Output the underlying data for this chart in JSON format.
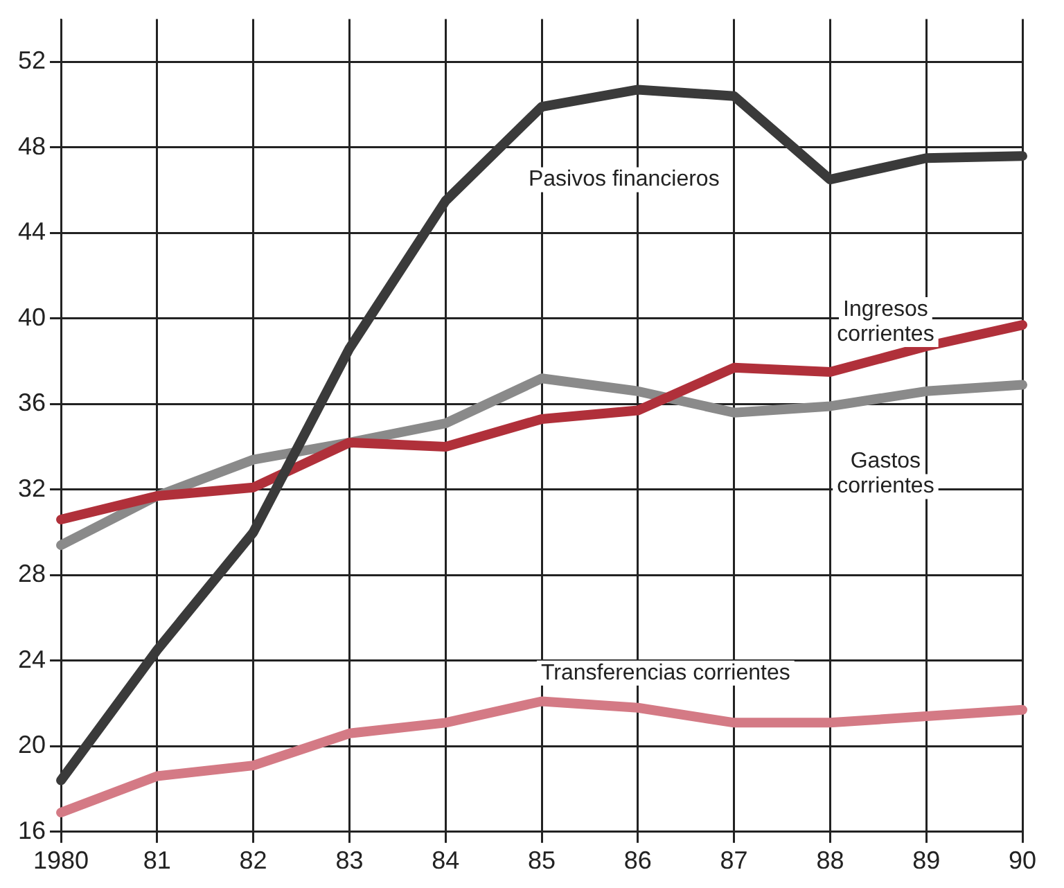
{
  "chart_data": {
    "type": "line",
    "categories": [
      "1980",
      "81",
      "82",
      "83",
      "84",
      "85",
      "86",
      "87",
      "88",
      "89",
      "90"
    ],
    "series": [
      {
        "name": "Pasivos financieros",
        "color": "#3a3a3a",
        "values": [
          18.4,
          24.5,
          30.0,
          38.6,
          45.5,
          49.9,
          50.7,
          50.4,
          46.5,
          47.5,
          47.6
        ]
      },
      {
        "name": "Ingresos corrientes",
        "color": "#b0303a",
        "values": [
          30.6,
          31.7,
          32.1,
          34.2,
          34.0,
          35.3,
          35.7,
          37.7,
          37.5,
          38.7,
          39.7
        ]
      },
      {
        "name": "Gastos corrientes",
        "color": "#8a8a8a",
        "values": [
          29.4,
          31.7,
          33.4,
          34.2,
          35.1,
          37.2,
          36.6,
          35.6,
          35.9,
          36.6,
          36.9
        ]
      },
      {
        "name": "Transferencias corrientes",
        "color": "#d47a85",
        "values": [
          16.9,
          18.6,
          19.1,
          20.6,
          21.1,
          22.1,
          21.8,
          21.1,
          21.1,
          21.4,
          21.7
        ]
      }
    ],
    "ylim": [
      16,
      54
    ],
    "yticks": [
      16,
      20,
      24,
      28,
      32,
      36,
      40,
      44,
      48,
      52
    ],
    "grid": true,
    "legend": false,
    "marker": "none",
    "line_style": "solid"
  }
}
